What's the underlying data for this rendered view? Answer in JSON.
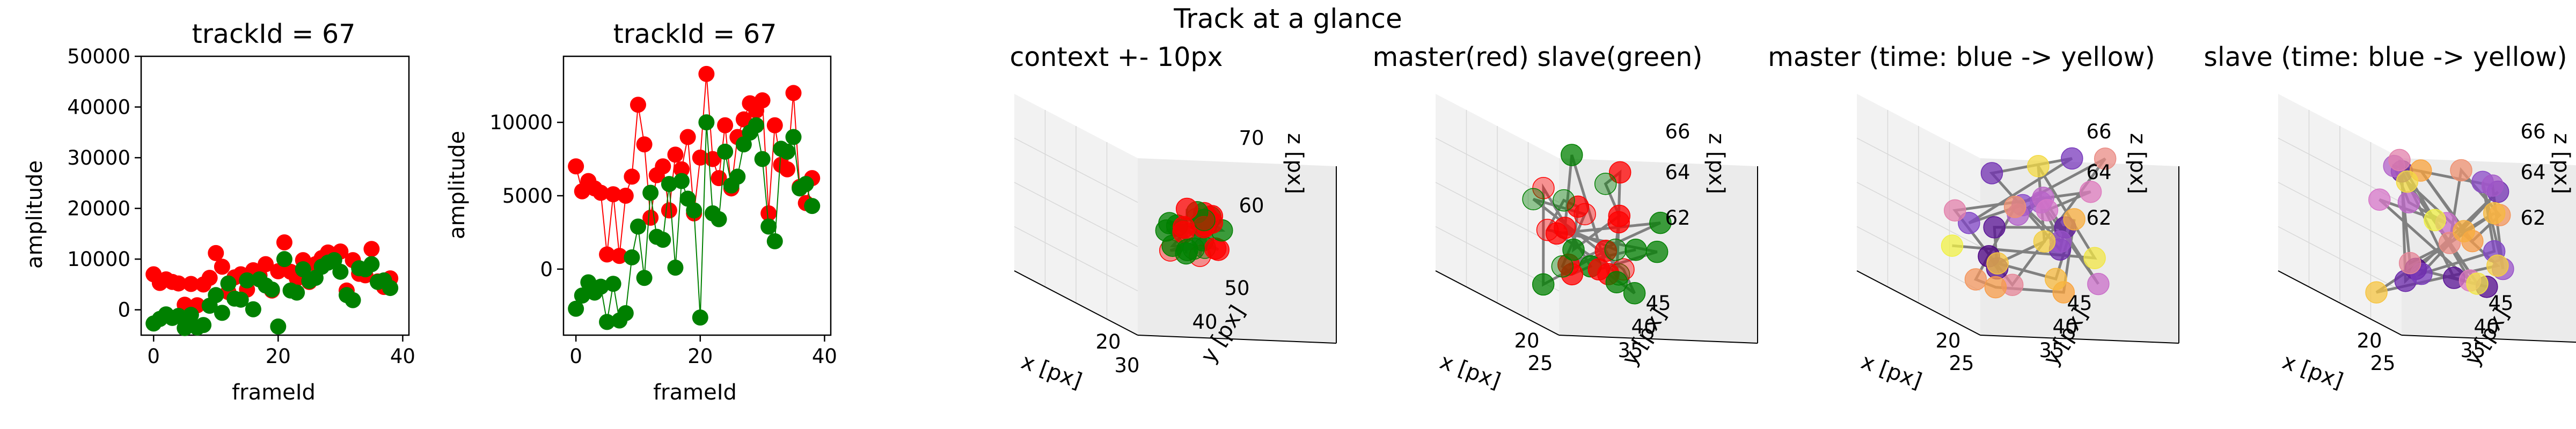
{
  "suptitle": "Track at a glance",
  "colors": {
    "red": "#ff0000",
    "green": "#008000",
    "pane": "#f2f2f2",
    "grid": "#d8d8d8",
    "line": "#808080"
  },
  "chart_data": [
    {
      "type": "scatter",
      "title": "trackId = 67",
      "xlabel": "frameId",
      "ylabel": "amplitude",
      "xlim": [
        -2,
        41
      ],
      "ylim": [
        -5000,
        50000
      ],
      "xticks": [
        "0",
        "20",
        "40"
      ],
      "yticks": [
        "0",
        "10000",
        "20000",
        "30000",
        "40000",
        "50000"
      ],
      "series": [
        {
          "color": "#ff0000",
          "x": [
            0,
            1,
            2,
            3,
            4,
            5,
            6,
            7,
            8,
            9,
            10,
            11,
            12,
            13,
            14,
            15,
            16,
            17,
            18,
            19,
            20,
            21,
            22,
            23,
            24,
            25,
            26,
            27,
            28,
            29,
            30,
            31,
            32,
            33,
            34,
            35,
            36,
            37,
            38
          ],
          "y": [
            7000,
            5300,
            6000,
            5500,
            5200,
            1000,
            5100,
            900,
            5000,
            6300,
            11200,
            8500,
            3500,
            6400,
            7000,
            4000,
            7800,
            6800,
            9000,
            3800,
            7600,
            13300,
            7500,
            6200,
            9800,
            5500,
            9000,
            10200,
            11300,
            10800,
            11500,
            3800,
            9800,
            7100,
            6800,
            12000,
            5600,
            4500,
            6200
          ]
        },
        {
          "color": "#008000",
          "x": [
            0,
            1,
            2,
            3,
            4,
            5,
            6,
            7,
            8,
            9,
            10,
            11,
            12,
            13,
            14,
            15,
            16,
            17,
            18,
            19,
            20,
            21,
            22,
            23,
            24,
            25,
            26,
            27,
            28,
            29,
            30,
            31,
            32,
            33,
            34,
            35,
            36,
            37,
            38
          ],
          "y": [
            -2700,
            -1800,
            -900,
            -1600,
            -1200,
            -3600,
            -1000,
            -3500,
            -3000,
            800,
            2900,
            -600,
            5200,
            2200,
            2000,
            5800,
            100,
            6000,
            4800,
            4000,
            -3300,
            10000,
            3800,
            3400,
            8000,
            5700,
            6300,
            8500,
            9300,
            9800,
            7500,
            2900,
            1900,
            8200,
            8000,
            9000,
            5500,
            5800,
            4300
          ]
        }
      ]
    },
    {
      "type": "line",
      "title": "trackId = 67",
      "xlabel": "frameId",
      "ylabel": "amplitude",
      "xlim": [
        -2,
        41
      ],
      "ylim": [
        -4500,
        14500
      ],
      "xticks": [
        "0",
        "20",
        "40"
      ],
      "yticks": [
        "0",
        "5000",
        "10000"
      ],
      "series": [
        {
          "color": "#ff0000",
          "x": [
            0,
            1,
            2,
            3,
            4,
            5,
            6,
            7,
            8,
            9,
            10,
            11,
            12,
            13,
            14,
            15,
            16,
            17,
            18,
            19,
            20,
            21,
            22,
            23,
            24,
            25,
            26,
            27,
            28,
            29,
            30,
            31,
            32,
            33,
            34,
            35,
            36,
            37,
            38
          ],
          "y": [
            7000,
            5300,
            6000,
            5500,
            5200,
            1000,
            5100,
            900,
            5000,
            6300,
            11200,
            8500,
            3500,
            6400,
            7000,
            4000,
            7800,
            6800,
            9000,
            3800,
            7600,
            13300,
            7500,
            6200,
            9800,
            5500,
            9000,
            10200,
            11300,
            10800,
            11500,
            3800,
            9800,
            7100,
            6800,
            12000,
            5600,
            4500,
            6200
          ]
        },
        {
          "color": "#008000",
          "x": [
            0,
            1,
            2,
            3,
            4,
            5,
            6,
            7,
            8,
            9,
            10,
            11,
            12,
            13,
            14,
            15,
            16,
            17,
            18,
            19,
            20,
            21,
            22,
            23,
            24,
            25,
            26,
            27,
            28,
            29,
            30,
            31,
            32,
            33,
            34,
            35,
            36,
            37,
            38
          ],
          "y": [
            -2700,
            -1800,
            -900,
            -1600,
            -1200,
            -3600,
            -1000,
            -3500,
            -3000,
            800,
            2900,
            -600,
            5200,
            2200,
            2000,
            5800,
            100,
            6000,
            4800,
            4000,
            -3300,
            10000,
            3800,
            3400,
            8000,
            5700,
            6300,
            8500,
            9300,
            9800,
            7500,
            2900,
            1900,
            8200,
            8000,
            9000,
            5500,
            5800,
            4300
          ]
        }
      ]
    },
    {
      "type": "scatter3d",
      "title": "context +- 10px",
      "xlabel": "x [px]",
      "ylabel": "y [px]",
      "zlabel": "z [px]",
      "xticks": [
        "20",
        "30"
      ],
      "yticks": [
        "40",
        "50"
      ],
      "zticks": [
        "60",
        "70"
      ]
    },
    {
      "type": "scatter3d",
      "title": "master(red) slave(green)",
      "xlabel": "x [px]",
      "ylabel": "y [px]",
      "zlabel": "z [px]",
      "xticks": [
        "20",
        "25"
      ],
      "yticks": [
        "35",
        "40",
        "45"
      ],
      "zticks": [
        "62",
        "64",
        "66"
      ]
    },
    {
      "type": "scatter3d",
      "title": "master (time: blue -> yellow)",
      "xlabel": "x [px]",
      "ylabel": "y [px]",
      "zlabel": "z [px]",
      "xticks": [
        "20",
        "25"
      ],
      "yticks": [
        "35",
        "40",
        "45"
      ],
      "zticks": [
        "62",
        "64",
        "66"
      ]
    },
    {
      "type": "scatter3d",
      "title": "slave (time: blue -> yellow)",
      "xlabel": "x [px]",
      "ylabel": "y [px]",
      "zlabel": "z [px]",
      "xticks": [
        "20",
        "25"
      ],
      "yticks": [
        "35",
        "40",
        "45"
      ],
      "zticks": [
        "62",
        "64",
        "66"
      ]
    }
  ]
}
